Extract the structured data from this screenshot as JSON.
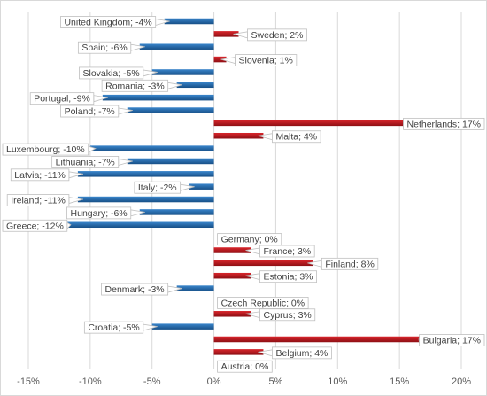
{
  "chart_data": {
    "type": "bar",
    "orientation": "horizontal",
    "title": "",
    "xlabel": "",
    "ylabel": "",
    "xlim": [
      -15,
      20
    ],
    "x_ticks": [
      -15,
      -10,
      -5,
      0,
      5,
      10,
      15,
      20
    ],
    "x_tick_labels": [
      "-15%",
      "-10%",
      "-5%",
      "0%",
      "5%",
      "10%",
      "15%",
      "20%"
    ],
    "grid": "vertical",
    "legend": "none",
    "colors": {
      "positive": "#c0141a",
      "negative": "#1f6bb0",
      "grid": "#d9d9d9",
      "callout_border": "#bfbfbf"
    },
    "categories": [
      "United Kingdom",
      "Sweden",
      "Spain",
      "Slovenia",
      "Slovakia",
      "Romania",
      "Portugal",
      "Poland",
      "Netherlands",
      "Malta",
      "Luxembourg",
      "Lithuania",
      "Latvia",
      "Italy",
      "Ireland",
      "Hungary",
      "Greece",
      "Germany",
      "France",
      "Finland",
      "Estonia",
      "Denmark",
      "Czech Republic",
      "Cyprus",
      "Croatia",
      "Bulgaria",
      "Belgium",
      "Austria"
    ],
    "values": [
      -4,
      2,
      -6,
      1,
      -5,
      -3,
      -9,
      -7,
      17,
      4,
      -10,
      -7,
      -11,
      -2,
      -11,
      -6,
      -12,
      0,
      3,
      8,
      3,
      -3,
      0,
      3,
      -5,
      17,
      4,
      0
    ],
    "data_labels": [
      "United Kingdom; -4%",
      "Sweden; 2%",
      "Spain; -6%",
      "Slovenia; 1%",
      "Slovakia; -5%",
      "Romania; -3%",
      "Portugal; -9%",
      "Poland; -7%",
      "Netherlands; 17%",
      "Malta; 4%",
      "Luxembourg; -10%",
      "Lithuania; -7%",
      "Latvia; -11%",
      "Italy; -2%",
      "Ireland; -11%",
      "Hungary; -6%",
      "Greece; -12%",
      "Germany; 0%",
      "France; 3%",
      "Finland; 8%",
      "Estonia; 3%",
      "Denmark; -3%",
      "Czech Republic; 0%",
      "Cyprus; 3%",
      "Croatia; -5%",
      "Bulgaria; 17%",
      "Belgium; 4%",
      "Austria; 0%"
    ]
  }
}
